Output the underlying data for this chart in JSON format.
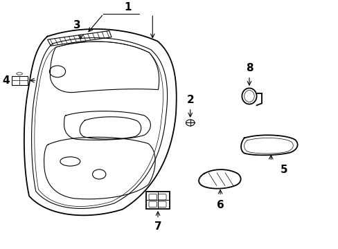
{
  "bg_color": "#ffffff",
  "line_color": "#000000",
  "fig_width": 4.89,
  "fig_height": 3.6,
  "dpi": 100,
  "label_fontsize": 11
}
